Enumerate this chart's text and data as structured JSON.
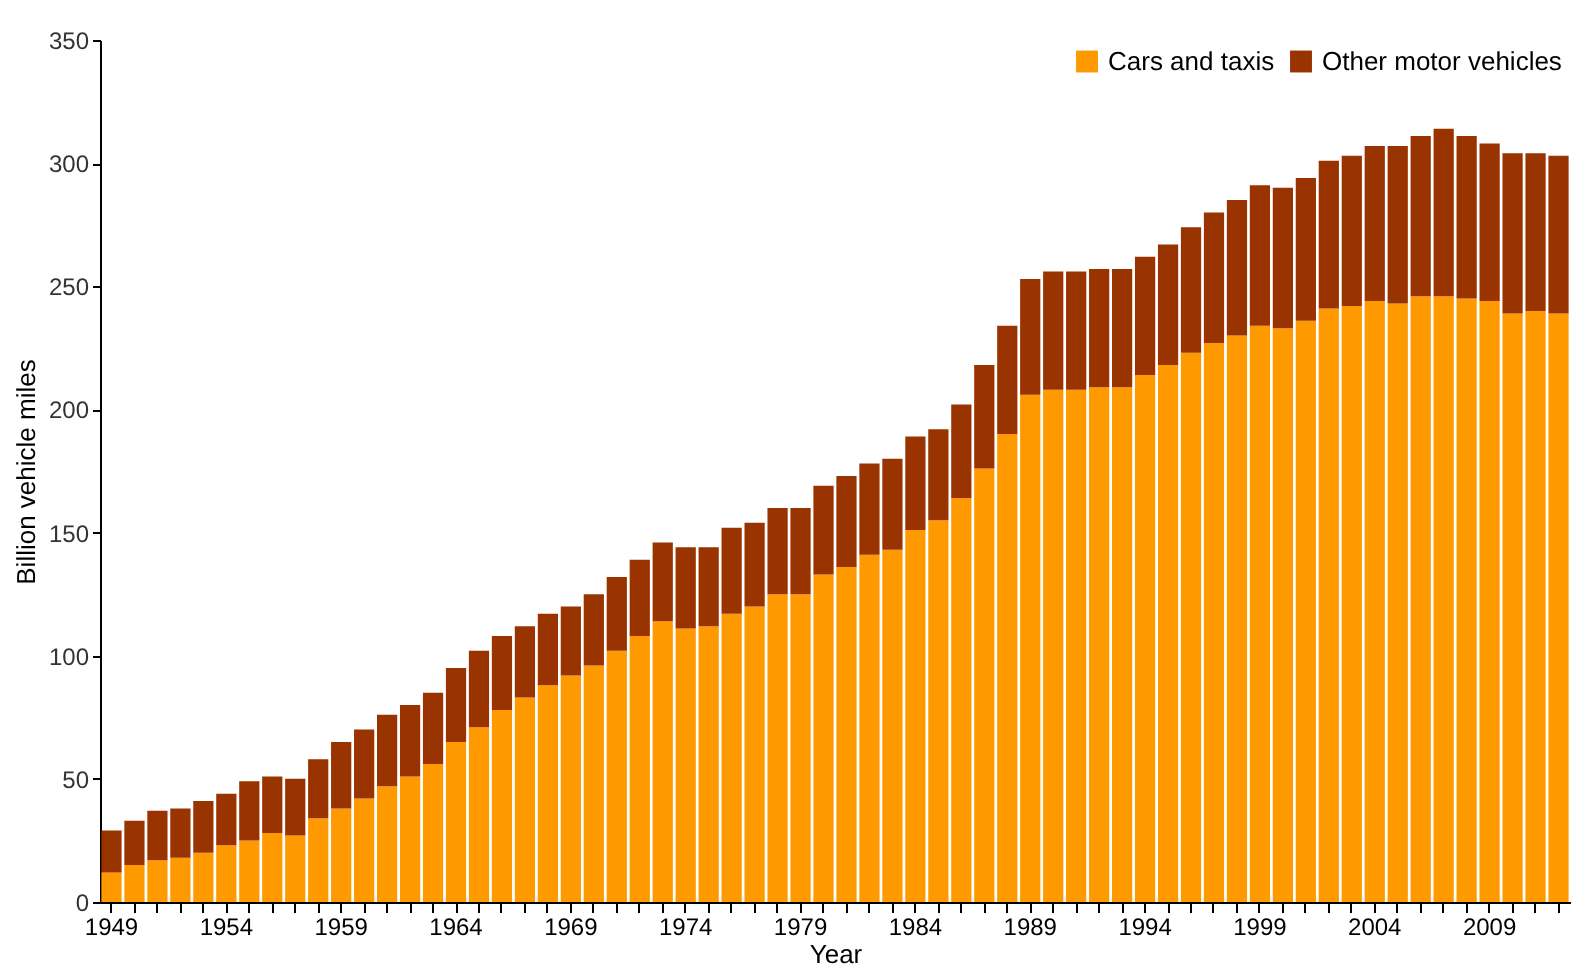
{
  "chart_data": {
    "type": "bar",
    "stacked": true,
    "xlabel": "Year",
    "ylabel": "Billion vehicle miles",
    "categories": [
      "1949",
      null,
      null,
      null,
      null,
      "1954",
      null,
      null,
      null,
      null,
      "1959",
      null,
      null,
      null,
      null,
      "1964",
      null,
      null,
      null,
      null,
      "1969",
      null,
      null,
      null,
      null,
      "1974",
      null,
      null,
      null,
      null,
      "1979",
      null,
      null,
      null,
      null,
      "1984",
      null,
      null,
      null,
      null,
      "1989",
      null,
      null,
      null,
      null,
      "1994",
      null,
      null,
      null,
      null,
      "1999",
      null,
      null,
      null,
      null,
      "2004",
      null,
      null,
      null,
      null,
      "2009",
      null,
      null,
      null
    ],
    "series": [
      {
        "name": "Cars and taxis",
        "color": "#ff9900",
        "values": [
          12,
          15,
          17,
          18,
          20,
          23,
          25,
          28,
          27,
          34,
          38,
          42,
          47,
          51,
          56,
          65,
          71,
          78,
          83,
          88,
          92,
          96,
          102,
          108,
          114,
          111,
          112,
          117,
          120,
          125,
          125,
          133,
          136,
          141,
          143,
          151,
          155,
          164,
          176,
          190,
          206,
          208,
          208,
          209,
          209,
          214,
          218,
          223,
          227,
          230,
          234,
          233,
          236,
          241,
          242,
          244,
          243,
          246,
          246,
          245,
          244,
          239,
          240,
          239
        ]
      },
      {
        "name": "Other motor vehicles",
        "color": "#993300",
        "values": [
          17,
          18,
          20,
          20,
          21,
          21,
          24,
          23,
          23,
          24,
          27,
          28,
          29,
          29,
          29,
          30,
          31,
          30,
          29,
          29,
          28,
          29,
          30,
          31,
          32,
          33,
          32,
          35,
          34,
          35,
          35,
          36,
          37,
          37,
          37,
          38,
          37,
          38,
          42,
          44,
          47,
          48,
          48,
          48,
          48,
          48,
          49,
          51,
          53,
          55,
          57,
          57,
          58,
          60,
          61,
          63,
          64,
          65,
          68,
          66,
          64,
          65,
          64,
          64
        ]
      }
    ],
    "ylim": [
      0,
      350
    ],
    "yticks": [
      0,
      50,
      100,
      150,
      200,
      250,
      300,
      350
    ],
    "legend": "top right"
  }
}
